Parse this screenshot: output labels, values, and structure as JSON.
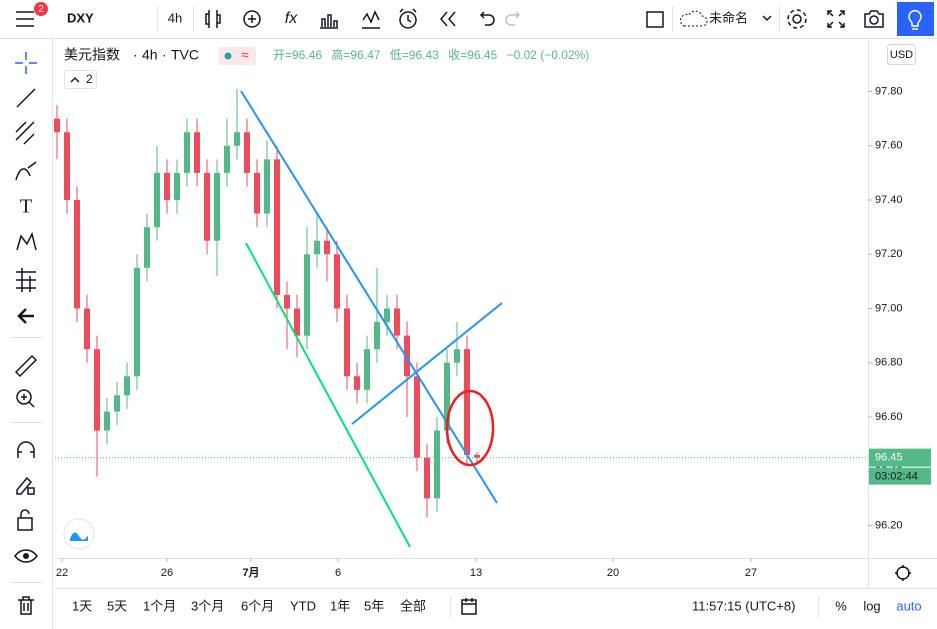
{
  "toolbar": {
    "symbol": "DXY",
    "interval": "4h",
    "layout_name": "未命名",
    "badge": "2"
  },
  "legend": {
    "name": "美元指数",
    "interval": "4h",
    "source": "TVC",
    "open": "开=96.46",
    "high": "高=96.47",
    "low": "低=96.43",
    "close": "收=96.45",
    "change": "−0.02 (−0.02%)",
    "indicators_count": "2"
  },
  "chart_data": {
    "type": "candlestick",
    "open": [
      97.7,
      97.65,
      97.4,
      97.0,
      96.85,
      96.55,
      96.62,
      96.68,
      96.75,
      97.15,
      97.3,
      97.5,
      97.4,
      97.5,
      97.65,
      97.5,
      97.25,
      97.5,
      97.6,
      97.65,
      97.5,
      97.35,
      97.55,
      97.05,
      97.0,
      96.9,
      97.2,
      97.25,
      97.2,
      97.0,
      96.75,
      96.7,
      96.85,
      96.95,
      97.0,
      96.9,
      96.75,
      96.45,
      96.3,
      96.55,
      96.8,
      96.85,
      96.46
    ],
    "high": [
      97.75,
      97.7,
      97.45,
      97.05,
      96.9,
      96.67,
      96.73,
      96.8,
      97.2,
      97.35,
      97.6,
      97.55,
      97.55,
      97.7,
      97.7,
      97.55,
      97.55,
      97.7,
      97.81,
      97.7,
      97.55,
      97.62,
      97.6,
      97.1,
      97.05,
      97.3,
      97.35,
      97.3,
      97.25,
      97.05,
      96.8,
      96.9,
      97.15,
      97.05,
      97.05,
      96.95,
      96.8,
      96.5,
      96.6,
      96.85,
      96.95,
      96.9,
      96.47
    ],
    "low": [
      97.55,
      97.35,
      96.95,
      96.8,
      96.38,
      96.5,
      96.57,
      96.63,
      96.7,
      97.1,
      97.25,
      97.35,
      97.35,
      97.45,
      97.45,
      97.2,
      97.12,
      97.45,
      97.55,
      97.45,
      97.3,
      97.3,
      97.0,
      96.85,
      96.82,
      96.85,
      97.15,
      97.1,
      96.95,
      96.7,
      96.65,
      96.65,
      96.8,
      96.9,
      96.85,
      96.6,
      96.4,
      96.23,
      96.25,
      96.5,
      96.75,
      96.42,
      96.43
    ],
    "close": [
      97.65,
      97.4,
      97.0,
      96.85,
      96.55,
      96.62,
      96.68,
      96.75,
      97.15,
      97.3,
      97.5,
      97.4,
      97.5,
      97.65,
      97.5,
      97.25,
      97.5,
      97.6,
      97.65,
      97.5,
      97.35,
      97.55,
      97.05,
      97.0,
      96.9,
      97.2,
      97.25,
      97.2,
      97.0,
      96.75,
      96.7,
      96.85,
      96.95,
      97.0,
      96.9,
      96.75,
      96.45,
      96.3,
      96.55,
      96.8,
      96.85,
      96.46,
      96.45
    ],
    "up_color": "#53b987",
    "down_color": "#eb4d5c",
    "xlim": [
      -0.2,
      81.1
    ],
    "xticks": [
      {
        "value": 0.5,
        "label": "22"
      },
      {
        "value": 11,
        "label": "26"
      },
      {
        "value": 19.4,
        "label": "7月"
      },
      {
        "value": 28.1,
        "label": "6"
      },
      {
        "value": 41.9,
        "label": "13"
      },
      {
        "value": 55.6,
        "label": "20"
      },
      {
        "value": 69.4,
        "label": "27"
      }
    ],
    "ylim": [
      96.08,
      97.99
    ],
    "yticks": [
      {
        "value": 96.2,
        "label": "96.20"
      },
      {
        "value": 96.4,
        "label": "96.40"
      },
      {
        "value": 96.6,
        "label": "96.60"
      },
      {
        "value": 96.8,
        "label": "96.80"
      },
      {
        "value": 97.0,
        "label": "97.00"
      },
      {
        "value": 97.2,
        "label": "97.20"
      },
      {
        "value": 97.4,
        "label": "97.40"
      },
      {
        "value": 97.6,
        "label": "97.60"
      },
      {
        "value": 97.8,
        "label": "97.80"
      }
    ],
    "currency": "USD",
    "last_price": {
      "value": 96.45,
      "label": "96.45"
    },
    "countdown": "03:02:44"
  },
  "bottom_bar": {
    "ranges": [
      "1天",
      "5天",
      "1个月",
      "3个月",
      "6个月",
      "YTD",
      "1年",
      "5年",
      "全部"
    ],
    "time": "11:57:15 (UTC+8)",
    "scale_options": [
      "%",
      "log",
      "auto"
    ]
  }
}
